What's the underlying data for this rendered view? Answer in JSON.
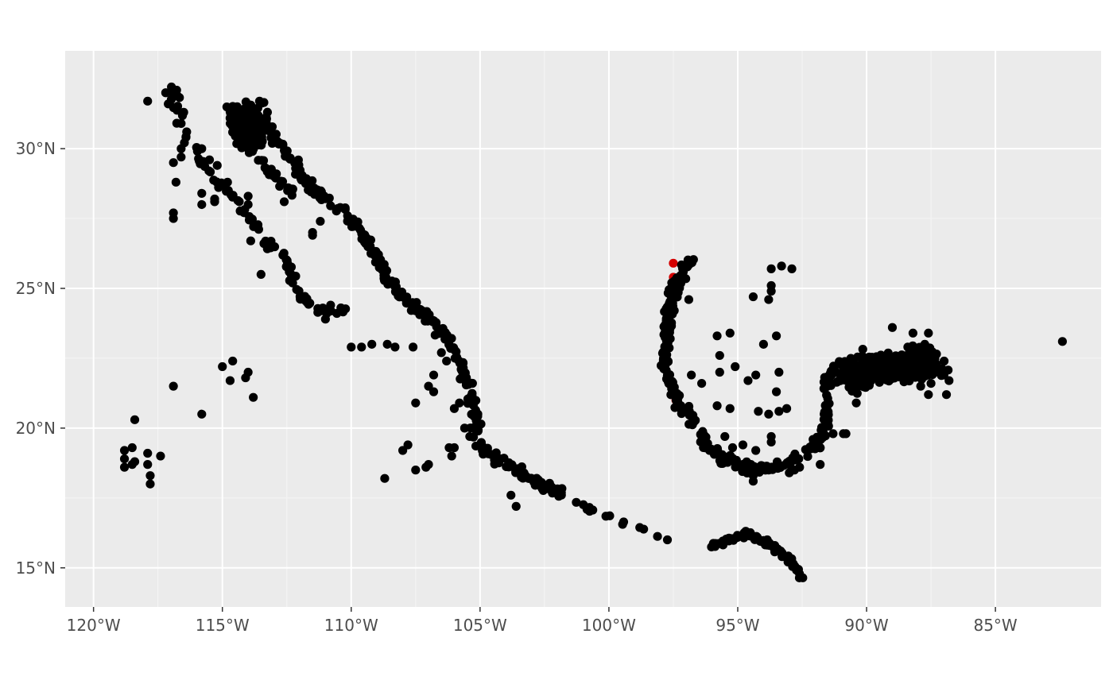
{
  "chart_data": {
    "type": "scatter",
    "title": "",
    "xlabel": "",
    "ylabel": "",
    "xlim": [
      -121.1,
      -80.9
    ],
    "ylim": [
      13.6,
      33.5
    ],
    "grid": true,
    "x_ticks": [
      {
        "value": -120,
        "label": "120°W"
      },
      {
        "value": -115,
        "label": "115°W"
      },
      {
        "value": -110,
        "label": "110°W"
      },
      {
        "value": -105,
        "label": "105°W"
      },
      {
        "value": -100,
        "label": "100°W"
      },
      {
        "value": -95,
        "label": "95°W"
      },
      {
        "value": -90,
        "label": "90°W"
      },
      {
        "value": -85,
        "label": "85°W"
      }
    ],
    "y_ticks": [
      {
        "value": 15,
        "label": "15°N"
      },
      {
        "value": 20,
        "label": "20°N"
      },
      {
        "value": 25,
        "label": "25°N"
      },
      {
        "value": 30,
        "label": "30°N"
      }
    ],
    "colors": {
      "panel": "#ebebeb",
      "grid_major": "#ffffff",
      "grid_minor": "#f5f5f5",
      "point": "#000000",
      "highlight_point": "#d40000"
    },
    "highlight_points": [
      {
        "lon": -97.5,
        "lat": 25.9
      },
      {
        "lon": -97.5,
        "lat": 25.4
      },
      {
        "lon": -97.9,
        "lat": 22.2
      },
      {
        "lon": -97.4,
        "lat": 21.0
      }
    ],
    "segments": [
      {
        "name": "baja_pacific",
        "points": [
          [
            -117.2,
            32.4
          ],
          [
            -116.8,
            31.9
          ],
          [
            -116.7,
            31.2
          ],
          [
            -116.4,
            30.4
          ],
          [
            -115.8,
            29.6
          ],
          [
            -115.2,
            28.8
          ],
          [
            -114.4,
            28.2
          ],
          [
            -114.1,
            27.7
          ],
          [
            -113.7,
            27.2
          ],
          [
            -113.4,
            26.7
          ],
          [
            -112.8,
            26.3
          ],
          [
            -112.4,
            25.7
          ],
          [
            -112.2,
            25.0
          ],
          [
            -111.8,
            24.6
          ],
          [
            -111.0,
            24.1
          ],
          [
            -110.3,
            24.2
          ]
        ],
        "n": 90,
        "jitter": 0.08
      },
      {
        "name": "gulf_california_east",
        "points": [
          [
            -114.8,
            31.0
          ],
          [
            -113.8,
            31.1
          ],
          [
            -113.0,
            30.5
          ],
          [
            -112.3,
            29.6
          ],
          [
            -111.8,
            28.8
          ],
          [
            -111.0,
            28.2
          ],
          [
            -109.9,
            27.4
          ],
          [
            -109.2,
            26.4
          ],
          [
            -108.6,
            25.4
          ],
          [
            -108.0,
            24.7
          ],
          [
            -107.0,
            24.0
          ],
          [
            -106.2,
            23.1
          ],
          [
            -105.7,
            22.3
          ],
          [
            -105.4,
            21.4
          ],
          [
            -105.2,
            20.5
          ],
          [
            -105.0,
            19.3
          ],
          [
            -104.4,
            19.0
          ],
          [
            -103.8,
            18.6
          ],
          [
            -102.8,
            18.0
          ],
          [
            -101.6,
            17.6
          ]
        ],
        "n": 340,
        "jitter": 0.09
      },
      {
        "name": "gulf_california_west",
        "points": [
          [
            -114.6,
            30.6
          ],
          [
            -114.2,
            30.0
          ],
          [
            -113.6,
            29.6
          ],
          [
            -113.0,
            29.0
          ],
          [
            -112.6,
            28.7
          ],
          [
            -112.2,
            28.4
          ]
        ],
        "n": 40,
        "jitter": 0.07
      },
      {
        "name": "upper_gulf_cluster",
        "points": [
          [
            -114.6,
            31.3
          ],
          [
            -113.6,
            31.2
          ],
          [
            -114.2,
            30.4
          ],
          [
            -113.4,
            30.6
          ]
        ],
        "n": 150,
        "jitter": 0.28
      },
      {
        "name": "pacific_south",
        "points": [
          [
            -101.4,
            17.4
          ],
          [
            -100.4,
            17.0
          ],
          [
            -99.2,
            16.6
          ],
          [
            -98.3,
            16.3
          ],
          [
            -97.6,
            16.0
          ]
        ],
        "n": 14,
        "jitter": 0.06
      },
      {
        "name": "chiapas_coast",
        "points": [
          [
            -96.1,
            15.8
          ],
          [
            -95.6,
            15.9
          ],
          [
            -94.6,
            16.2
          ],
          [
            -93.7,
            15.8
          ],
          [
            -93.0,
            15.3
          ],
          [
            -92.5,
            14.6
          ]
        ],
        "n": 75,
        "jitter": 0.06
      },
      {
        "name": "tamaulipas_veracruz",
        "points": [
          [
            -96.8,
            26.0
          ],
          [
            -97.1,
            25.6
          ],
          [
            -97.5,
            24.8
          ],
          [
            -97.7,
            23.7
          ],
          [
            -97.8,
            22.3
          ],
          [
            -97.5,
            21.3
          ],
          [
            -97.1,
            20.6
          ],
          [
            -96.6,
            20.0
          ],
          [
            -96.1,
            19.3
          ],
          [
            -95.3,
            18.8
          ],
          [
            -94.4,
            18.6
          ],
          [
            -93.6,
            18.6
          ],
          [
            -92.6,
            18.9
          ],
          [
            -91.9,
            19.5
          ],
          [
            -91.6,
            20.1
          ],
          [
            -91.5,
            21.0
          ],
          [
            -91.5,
            21.8
          ],
          [
            -91.2,
            22.2
          ]
        ],
        "n": 280,
        "jitter": 0.09
      },
      {
        "name": "tamaulipas_edge",
        "points": [
          [
            -97.0,
            25.9
          ],
          [
            -97.6,
            25.0
          ],
          [
            -97.8,
            23.2
          ],
          [
            -97.9,
            22.2
          ]
        ],
        "n": 50,
        "jitter": 0.06
      }
    ],
    "clusters": [
      {
        "name": "yucatan_north",
        "center": [
          -89.0,
          22.2
        ],
        "spread": [
          1.5,
          0.45
        ],
        "n": 380
      },
      {
        "name": "yucatan_north_west",
        "center": [
          -90.4,
          21.8
        ],
        "spread": [
          0.7,
          0.4
        ],
        "n": 90
      },
      {
        "name": "yucatan_north_east",
        "center": [
          -87.8,
          22.5
        ],
        "spread": [
          0.5,
          0.45
        ],
        "n": 70
      }
    ],
    "points": [
      [
        -117.9,
        31.7
      ],
      [
        -117.2,
        32.0
      ],
      [
        -117.1,
        31.6
      ],
      [
        -116.5,
        31.3
      ],
      [
        -116.6,
        30.9
      ],
      [
        -116.6,
        29.7
      ],
      [
        -116.9,
        29.5
      ],
      [
        -116.8,
        28.8
      ],
      [
        -116.6,
        30.0
      ],
      [
        -116.9,
        27.7
      ],
      [
        -116.9,
        27.5
      ],
      [
        -115.8,
        30.0
      ],
      [
        -115.5,
        29.6
      ],
      [
        -115.2,
        29.4
      ],
      [
        -115.8,
        28.4
      ],
      [
        -115.8,
        28.0
      ],
      [
        -115.3,
        28.1
      ],
      [
        -115.3,
        28.2
      ],
      [
        -115.0,
        28.7
      ],
      [
        -114.8,
        28.8
      ],
      [
        -114.0,
        28.3
      ],
      [
        -114.0,
        28.0
      ],
      [
        -113.9,
        26.7
      ],
      [
        -113.5,
        25.5
      ],
      [
        -112.6,
        28.1
      ],
      [
        -111.5,
        26.9
      ],
      [
        -111.5,
        27.0
      ],
      [
        -111.2,
        27.4
      ],
      [
        -110.8,
        24.4
      ],
      [
        -110.4,
        24.3
      ],
      [
        -111.0,
        23.9
      ],
      [
        -110.0,
        22.9
      ],
      [
        -109.6,
        22.9
      ],
      [
        -109.2,
        23.0
      ],
      [
        -108.6,
        23.0
      ],
      [
        -108.3,
        22.9
      ],
      [
        -107.6,
        22.9
      ],
      [
        -107.5,
        20.9
      ],
      [
        -107.0,
        21.5
      ],
      [
        -106.8,
        21.9
      ],
      [
        -106.8,
        21.3
      ],
      [
        -106.5,
        22.7
      ],
      [
        -106.3,
        22.4
      ],
      [
        -106.0,
        20.7
      ],
      [
        -105.8,
        20.9
      ],
      [
        -105.6,
        20.0
      ],
      [
        -105.4,
        19.7
      ],
      [
        -106.2,
        19.3
      ],
      [
        -106.0,
        19.3
      ],
      [
        -106.1,
        19.0
      ],
      [
        -107.5,
        18.5
      ],
      [
        -107.0,
        18.7
      ],
      [
        -107.1,
        18.6
      ],
      [
        -108.0,
        19.2
      ],
      [
        -107.8,
        19.4
      ],
      [
        -108.7,
        18.2
      ],
      [
        -104.2,
        18.9
      ],
      [
        -103.8,
        17.6
      ],
      [
        -103.6,
        17.2
      ],
      [
        -102.7,
        18.0
      ],
      [
        -102.2,
        17.8
      ],
      [
        -114.6,
        22.4
      ],
      [
        -115.0,
        22.2
      ],
      [
        -114.7,
        21.7
      ],
      [
        -114.1,
        21.8
      ],
      [
        -114.0,
        22.0
      ],
      [
        -113.8,
        21.1
      ],
      [
        -116.9,
        21.5
      ],
      [
        -115.8,
        20.5
      ],
      [
        -118.4,
        20.3
      ],
      [
        -118.8,
        19.2
      ],
      [
        -118.5,
        19.3
      ],
      [
        -118.8,
        18.9
      ],
      [
        -118.4,
        18.8
      ],
      [
        -118.5,
        18.7
      ],
      [
        -118.8,
        18.6
      ],
      [
        -117.9,
        19.1
      ],
      [
        -117.9,
        18.7
      ],
      [
        -117.8,
        18.3
      ],
      [
        -117.8,
        18.0
      ],
      [
        -117.4,
        19.0
      ],
      [
        -96.9,
        24.6
      ],
      [
        -96.8,
        21.9
      ],
      [
        -96.4,
        21.6
      ],
      [
        -95.8,
        23.3
      ],
      [
        -95.7,
        22.6
      ],
      [
        -95.3,
        23.4
      ],
      [
        -95.7,
        22.0
      ],
      [
        -95.1,
        22.2
      ],
      [
        -94.4,
        24.7
      ],
      [
        -93.7,
        25.7
      ],
      [
        -93.3,
        25.8
      ],
      [
        -92.9,
        25.7
      ],
      [
        -93.7,
        25.1
      ],
      [
        -93.7,
        24.9
      ],
      [
        -93.8,
        24.6
      ],
      [
        -93.5,
        23.3
      ],
      [
        -94.0,
        23.0
      ],
      [
        -93.4,
        22.0
      ],
      [
        -94.3,
        21.9
      ],
      [
        -94.6,
        21.7
      ],
      [
        -93.5,
        21.3
      ],
      [
        -94.2,
        20.6
      ],
      [
        -93.8,
        20.5
      ],
      [
        -93.4,
        20.6
      ],
      [
        -93.1,
        20.7
      ],
      [
        -95.3,
        20.7
      ],
      [
        -95.8,
        20.8
      ],
      [
        -95.5,
        19.7
      ],
      [
        -95.2,
        19.3
      ],
      [
        -94.8,
        19.4
      ],
      [
        -93.7,
        19.7
      ],
      [
        -93.7,
        19.5
      ],
      [
        -94.3,
        19.2
      ],
      [
        -94.4,
        18.3
      ],
      [
        -94.4,
        18.1
      ],
      [
        -93.8,
        18.5
      ],
      [
        -93.5,
        18.6
      ],
      [
        -93.0,
        18.4
      ],
      [
        -92.8,
        18.5
      ],
      [
        -92.6,
        18.6
      ],
      [
        -92.8,
        19.0
      ],
      [
        -91.8,
        18.7
      ],
      [
        -91.8,
        19.3
      ],
      [
        -91.3,
        19.8
      ],
      [
        -90.9,
        19.8
      ],
      [
        -90.8,
        19.8
      ],
      [
        -90.4,
        20.9
      ],
      [
        -87.9,
        21.5
      ],
      [
        -87.6,
        21.2
      ],
      [
        -87.5,
        21.6
      ],
      [
        -86.9,
        21.2
      ],
      [
        -86.8,
        21.7
      ],
      [
        -87.0,
        21.9
      ],
      [
        -88.2,
        23.4
      ],
      [
        -88.4,
        22.9
      ],
      [
        -89.0,
        23.6
      ],
      [
        -87.6,
        23.4
      ],
      [
        -82.4,
        23.1
      ]
    ]
  }
}
